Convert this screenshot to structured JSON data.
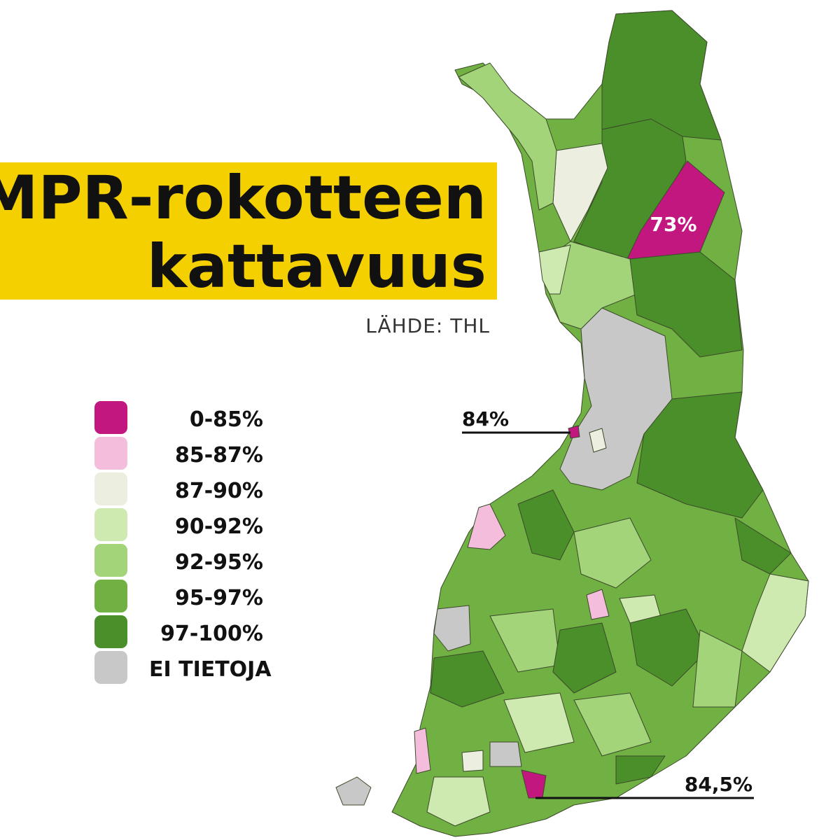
{
  "title": {
    "lines": [
      "MPR-rokotteen",
      "kattavuus"
    ]
  },
  "source": "LÄHDE: THL",
  "legend": {
    "items": [
      {
        "label": "0-85%",
        "color": "#c2177f"
      },
      {
        "label": "85-87%",
        "color": "#f4bddb"
      },
      {
        "label": "87-90%",
        "color": "#ecefdf"
      },
      {
        "label": "90-92%",
        "color": "#cfeab1"
      },
      {
        "label": "92-95%",
        "color": "#a3d47a"
      },
      {
        "label": "95-97%",
        "color": "#71b043"
      },
      {
        "label": "97-100%",
        "color": "#4a8f2a"
      },
      {
        "label": "EI TIETOJA",
        "color": "#c8c8c8"
      }
    ]
  },
  "annotations": [
    {
      "label": "73%"
    },
    {
      "label": "84%"
    },
    {
      "label": "84,5%"
    }
  ]
}
